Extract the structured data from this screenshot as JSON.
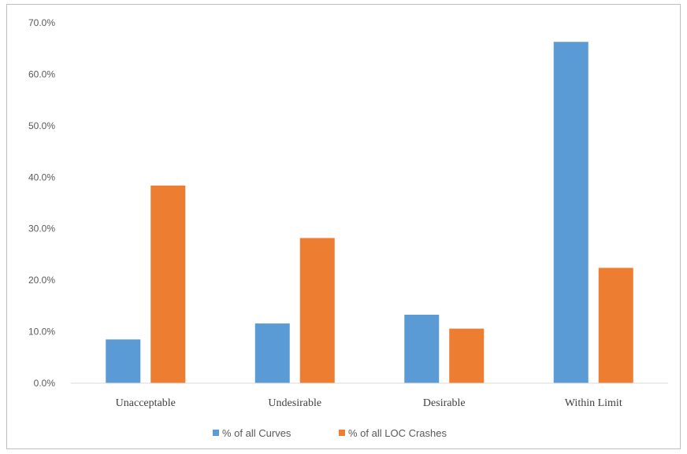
{
  "chart_data": {
    "type": "bar",
    "title": "",
    "xlabel": "",
    "ylabel": "",
    "categories": [
      "Unacceptable",
      "Undesirable",
      "Desirable",
      "Within Limit"
    ],
    "series": [
      {
        "name": "% of all Curves",
        "color": "#5b9bd5",
        "values": [
          8.5,
          11.6,
          13.3,
          66.3
        ]
      },
      {
        "name": "% of all LOC Crashes",
        "color": "#ed7d31",
        "values": [
          38.4,
          28.2,
          10.6,
          22.4
        ]
      }
    ],
    "ylim": [
      0,
      70
    ],
    "yticks": [
      "0.0%",
      "10.0%",
      "20.0%",
      "30.0%",
      "40.0%",
      "50.0%",
      "60.0%",
      "70.0%"
    ],
    "grid": false,
    "legend_position": "bottom"
  }
}
